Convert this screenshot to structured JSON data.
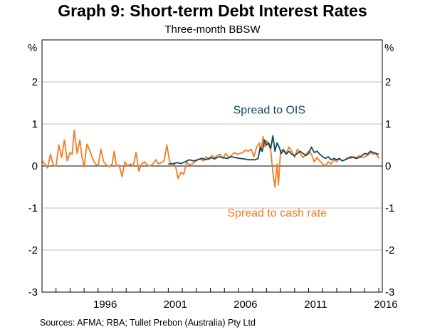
{
  "chart_data": {
    "type": "line",
    "title": "Graph 9: Short-term Debt Interest Rates",
    "subtitle": "Three-month BBSW",
    "ylabel_left": "%",
    "ylabel_right": "%",
    "ylim": [
      -3,
      3
    ],
    "xlim": [
      1992.0,
      2016.25
    ],
    "y_ticks": [
      -3,
      -2,
      -1,
      0,
      1,
      2
    ],
    "y_tick_labels": [
      "-3",
      "-2",
      "-1",
      "0",
      "1",
      "2"
    ],
    "x_ticks": [
      1996,
      2001,
      2006,
      2011,
      2016
    ],
    "x_tick_labels": [
      "1996",
      "2001",
      "2006",
      "2011",
      "2016"
    ],
    "grid": true,
    "legend": "inline annotations",
    "series": [
      {
        "name": "Spread to cash rate",
        "color": "#f47b20",
        "x": [
          1992.0,
          1992.2,
          1992.4,
          1992.6,
          1992.8,
          1993.0,
          1993.2,
          1993.4,
          1993.6,
          1993.8,
          1994.0,
          1994.15,
          1994.3,
          1994.5,
          1994.7,
          1994.85,
          1995.0,
          1995.2,
          1995.4,
          1995.6,
          1995.8,
          1996.0,
          1996.2,
          1996.4,
          1996.6,
          1996.8,
          1997.0,
          1997.15,
          1997.3,
          1997.5,
          1997.7,
          1997.9,
          1998.1,
          1998.3,
          1998.5,
          1998.7,
          1998.9,
          1999.1,
          1999.3,
          1999.5,
          1999.7,
          1999.9,
          2000.1,
          2000.3,
          2000.5,
          2000.7,
          2000.9,
          2001.1,
          2001.3,
          2001.5,
          2001.7,
          2001.9,
          2002.1,
          2002.3,
          2002.5,
          2002.7,
          2002.9,
          2003.1,
          2003.3,
          2003.5,
          2003.7,
          2003.9,
          2004.1,
          2004.3,
          2004.5,
          2004.7,
          2004.9,
          2005.1,
          2005.3,
          2005.5,
          2005.7,
          2005.9,
          2006.1,
          2006.3,
          2006.5,
          2006.7,
          2006.9,
          2007.1,
          2007.3,
          2007.5,
          2007.6,
          2007.75,
          2007.9,
          2008.0,
          2008.15,
          2008.3,
          2008.45,
          2008.6,
          2008.75,
          2008.85,
          2009.0,
          2009.2,
          2009.4,
          2009.6,
          2009.8,
          2010.0,
          2010.2,
          2010.4,
          2010.6,
          2010.8,
          2011.0,
          2011.2,
          2011.4,
          2011.6,
          2011.8,
          2012.0,
          2012.2,
          2012.4,
          2012.6,
          2012.8,
          2013.0,
          2013.2,
          2013.4,
          2013.6,
          2013.8,
          2014.0,
          2014.2,
          2014.4,
          2014.6,
          2014.8,
          2015.0,
          2015.2,
          2015.4,
          2015.6,
          2015.8,
          2016.0
        ],
        "values": [
          0.12,
          0.05,
          -0.05,
          0.28,
          0.02,
          0.0,
          0.5,
          0.2,
          0.62,
          0.12,
          0.32,
          0.28,
          0.85,
          0.3,
          0.62,
          0.2,
          -0.02,
          0.52,
          0.38,
          0.18,
          0.05,
          0.0,
          0.4,
          0.1,
          0.02,
          -0.02,
          0.05,
          0.35,
          0.0,
          0.02,
          -0.25,
          0.1,
          0.0,
          0.05,
          0.0,
          0.32,
          -0.12,
          0.05,
          0.1,
          0.02,
          0.0,
          0.05,
          0.15,
          0.05,
          0.08,
          0.12,
          0.5,
          0.1,
          0.05,
          0.02,
          -0.3,
          -0.15,
          -0.2,
          0.1,
          0.02,
          0.05,
          0.1,
          0.15,
          0.18,
          0.12,
          0.22,
          0.15,
          0.25,
          0.2,
          0.25,
          0.28,
          0.18,
          0.3,
          0.2,
          0.25,
          0.32,
          0.28,
          0.3,
          0.32,
          0.38,
          0.35,
          0.4,
          0.22,
          0.45,
          0.55,
          0.35,
          0.7,
          0.45,
          0.6,
          0.5,
          0.38,
          -0.15,
          -0.5,
          0.05,
          -0.45,
          0.35,
          0.4,
          0.3,
          0.45,
          0.35,
          0.2,
          0.4,
          0.3,
          0.2,
          0.28,
          0.35,
          0.28,
          0.1,
          0.2,
          0.12,
          0.05,
          0.0,
          0.1,
          0.05,
          0.15,
          0.1,
          0.18,
          0.12,
          0.15,
          0.2,
          0.18,
          0.22,
          0.2,
          0.25,
          0.2,
          0.22,
          0.25,
          0.32,
          0.28,
          0.3,
          0.18
        ]
      },
      {
        "name": "Spread to OIS",
        "color": "#0e4a5c",
        "x": [
          2001.0,
          2001.3,
          2001.6,
          2001.9,
          2002.2,
          2002.5,
          2002.8,
          2003.1,
          2003.4,
          2003.7,
          2004.0,
          2004.3,
          2004.6,
          2004.9,
          2005.2,
          2005.5,
          2005.8,
          2006.1,
          2006.4,
          2006.7,
          2007.0,
          2007.2,
          2007.4,
          2007.55,
          2007.7,
          2007.85,
          2008.0,
          2008.15,
          2008.3,
          2008.45,
          2008.6,
          2008.75,
          2008.9,
          2009.05,
          2009.2,
          2009.4,
          2009.6,
          2009.8,
          2010.0,
          2010.2,
          2010.4,
          2010.6,
          2010.8,
          2011.0,
          2011.2,
          2011.4,
          2011.6,
          2011.8,
          2012.0,
          2012.2,
          2012.4,
          2012.6,
          2012.8,
          2013.0,
          2013.2,
          2013.4,
          2013.6,
          2013.8,
          2014.0,
          2014.2,
          2014.4,
          2014.6,
          2014.8,
          2015.0,
          2015.2,
          2015.4,
          2015.6,
          2015.8,
          2016.0
        ],
        "values": [
          0.05,
          0.05,
          0.08,
          0.06,
          0.1,
          0.15,
          0.12,
          0.15,
          0.18,
          0.15,
          0.2,
          0.17,
          0.22,
          0.2,
          0.18,
          0.22,
          0.2,
          0.18,
          0.17,
          0.15,
          0.15,
          0.15,
          0.18,
          0.45,
          0.35,
          0.62,
          0.5,
          0.55,
          0.42,
          0.72,
          0.35,
          0.55,
          0.45,
          0.3,
          0.38,
          0.28,
          0.35,
          0.28,
          0.25,
          0.3,
          0.35,
          0.3,
          0.25,
          0.3,
          0.45,
          0.32,
          0.35,
          0.28,
          0.22,
          0.18,
          0.22,
          0.15,
          0.18,
          0.15,
          0.18,
          0.12,
          0.15,
          0.18,
          0.22,
          0.2,
          0.18,
          0.2,
          0.25,
          0.3,
          0.28,
          0.35,
          0.32,
          0.3,
          0.28
        ]
      }
    ],
    "annotations": [
      {
        "text": "Spread to OIS",
        "x": 2008.2,
        "y": 1.25,
        "color": "#0e4a5c"
      },
      {
        "text": "Spread to cash rate",
        "x": 2008.75,
        "y": -1.2,
        "color": "#f47b20"
      }
    ],
    "source": "Sources:  AFMA; RBA; Tullet Prebon (Australia) Pty Ltd"
  }
}
